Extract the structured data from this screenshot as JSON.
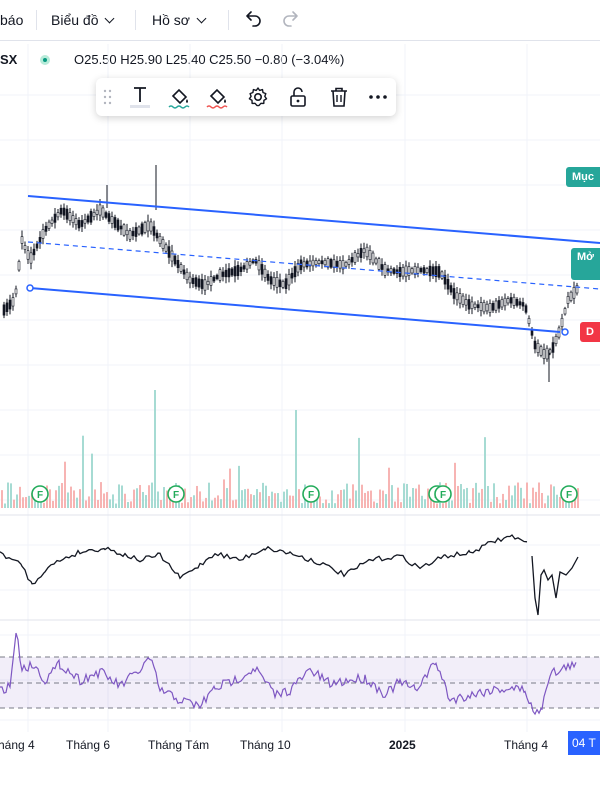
{
  "topbar": {
    "alerts_label": "báo",
    "chart_menu_label": "Biểu đồ",
    "profile_menu_label": "Hồ sơ"
  },
  "legend": {
    "symbol": "SX",
    "ohlc": "O25.50  H25.90  L25.40  C25.50  −0.80 (−3.04%)"
  },
  "tags": {
    "target": "Mục",
    "open": "Mở",
    "stop": "D"
  },
  "xaxis": {
    "labels": [
      "háng 4",
      "Tháng 6",
      "Tháng Tám",
      "Tháng 10",
      "2025",
      "Tháng 4"
    ],
    "current_date": "04 T"
  },
  "colors": {
    "up": "#26a69a",
    "down": "#ef5350",
    "channel": "#2962ff",
    "rsi": "#7e57c2",
    "target_tag": "#26a69a",
    "stop_tag": "#f23645"
  }
}
